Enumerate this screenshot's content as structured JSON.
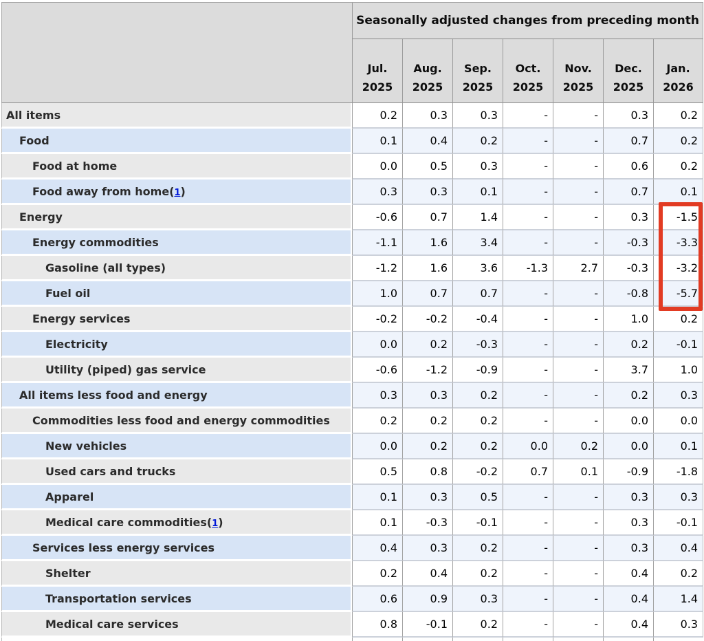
{
  "header": {
    "span_title": "Seasonally adjusted changes from preceding month",
    "months": [
      {
        "line1": "Jul.",
        "line2": "2025"
      },
      {
        "line1": "Aug.",
        "line2": "2025"
      },
      {
        "line1": "Sep.",
        "line2": "2025"
      },
      {
        "line1": "Oct.",
        "line2": "2025"
      },
      {
        "line1": "Nov.",
        "line2": "2025"
      },
      {
        "line1": "Dec.",
        "line2": "2025"
      },
      {
        "line1": "Jan.",
        "line2": "2026"
      }
    ]
  },
  "rows": [
    {
      "label": "All items",
      "indent": 0,
      "shade": "gray",
      "footnote": null,
      "values": [
        "0.2",
        "0.3",
        "0.3",
        "-",
        "-",
        "0.3",
        "0.2"
      ]
    },
    {
      "label": "Food",
      "indent": 1,
      "shade": "blue",
      "footnote": null,
      "values": [
        "0.1",
        "0.4",
        "0.2",
        "-",
        "-",
        "0.7",
        "0.2"
      ]
    },
    {
      "label": "Food at home",
      "indent": 2,
      "shade": "gray",
      "footnote": null,
      "values": [
        "0.0",
        "0.5",
        "0.3",
        "-",
        "-",
        "0.6",
        "0.2"
      ]
    },
    {
      "label": "Food away from home",
      "indent": 2,
      "shade": "blue",
      "footnote": "1",
      "values": [
        "0.3",
        "0.3",
        "0.1",
        "-",
        "-",
        "0.7",
        "0.1"
      ]
    },
    {
      "label": "Energy",
      "indent": 1,
      "shade": "gray",
      "footnote": null,
      "values": [
        "-0.6",
        "0.7",
        "1.4",
        "-",
        "-",
        "0.3",
        "-1.5"
      ]
    },
    {
      "label": "Energy commodities",
      "indent": 2,
      "shade": "blue",
      "footnote": null,
      "values": [
        "-1.1",
        "1.6",
        "3.4",
        "-",
        "-",
        "-0.3",
        "-3.3"
      ]
    },
    {
      "label": "Gasoline (all types)",
      "indent": 3,
      "shade": "gray",
      "footnote": null,
      "values": [
        "-1.2",
        "1.6",
        "3.6",
        "-1.3",
        "2.7",
        "-0.3",
        "-3.2"
      ]
    },
    {
      "label": "Fuel oil",
      "indent": 3,
      "shade": "blue",
      "footnote": null,
      "values": [
        "1.0",
        "0.7",
        "0.7",
        "-",
        "-",
        "-0.8",
        "-5.7"
      ]
    },
    {
      "label": "Energy services",
      "indent": 2,
      "shade": "gray",
      "footnote": null,
      "values": [
        "-0.2",
        "-0.2",
        "-0.4",
        "-",
        "-",
        "1.0",
        "0.2"
      ]
    },
    {
      "label": "Electricity",
      "indent": 3,
      "shade": "blue",
      "footnote": null,
      "values": [
        "0.0",
        "0.2",
        "-0.3",
        "-",
        "-",
        "0.2",
        "-0.1"
      ]
    },
    {
      "label": "Utility (piped) gas service",
      "indent": 3,
      "shade": "gray",
      "footnote": null,
      "values": [
        "-0.6",
        "-1.2",
        "-0.9",
        "-",
        "-",
        "3.7",
        "1.0"
      ]
    },
    {
      "label": "All items less food and energy",
      "indent": 1,
      "shade": "blue",
      "footnote": null,
      "values": [
        "0.3",
        "0.3",
        "0.2",
        "-",
        "-",
        "0.2",
        "0.3"
      ]
    },
    {
      "label": "Commodities less food and energy commodities",
      "indent": 2,
      "shade": "gray",
      "footnote": null,
      "values": [
        "0.2",
        "0.2",
        "0.2",
        "-",
        "-",
        "0.0",
        "0.0"
      ]
    },
    {
      "label": "New vehicles",
      "indent": 3,
      "shade": "blue",
      "footnote": null,
      "values": [
        "0.0",
        "0.2",
        "0.2",
        "0.0",
        "0.2",
        "0.0",
        "0.1"
      ]
    },
    {
      "label": "Used cars and trucks",
      "indent": 3,
      "shade": "gray",
      "footnote": null,
      "values": [
        "0.5",
        "0.8",
        "-0.2",
        "0.7",
        "0.1",
        "-0.9",
        "-1.8"
      ]
    },
    {
      "label": "Apparel",
      "indent": 3,
      "shade": "blue",
      "footnote": null,
      "values": [
        "0.1",
        "0.3",
        "0.5",
        "-",
        "-",
        "0.3",
        "0.3"
      ]
    },
    {
      "label": "Medical care commodities",
      "indent": 3,
      "shade": "gray",
      "footnote": "1",
      "values": [
        "0.1",
        "-0.3",
        "-0.1",
        "-",
        "-",
        "0.3",
        "-0.1"
      ]
    },
    {
      "label": "Services less energy services",
      "indent": 2,
      "shade": "blue",
      "footnote": null,
      "values": [
        "0.4",
        "0.3",
        "0.2",
        "-",
        "-",
        "0.3",
        "0.4"
      ]
    },
    {
      "label": "Shelter",
      "indent": 3,
      "shade": "gray",
      "footnote": null,
      "values": [
        "0.2",
        "0.4",
        "0.2",
        "-",
        "-",
        "0.4",
        "0.2"
      ]
    },
    {
      "label": "Transportation services",
      "indent": 3,
      "shade": "blue",
      "footnote": null,
      "values": [
        "0.6",
        "0.9",
        "0.3",
        "-",
        "-",
        "0.4",
        "1.4"
      ]
    },
    {
      "label": "Medical care services",
      "indent": 3,
      "shade": "gray",
      "footnote": null,
      "values": [
        "0.8",
        "-0.1",
        "0.2",
        "-",
        "-",
        "0.4",
        "0.3"
      ]
    }
  ],
  "highlight": {
    "color": "#e23b23",
    "column": "Jan. 2026",
    "rows_covered": [
      "Energy",
      "Energy commodities",
      "Gasoline (all types)",
      "Fuel oil"
    ]
  },
  "colors": {
    "header_bg": "#dcdcdc",
    "gray_label": "#e9e9e9",
    "blue_label": "#d7e4f6",
    "blue_data": "#eff4fc",
    "white_data": "#ffffff",
    "footnote_link": "#0018d8"
  }
}
